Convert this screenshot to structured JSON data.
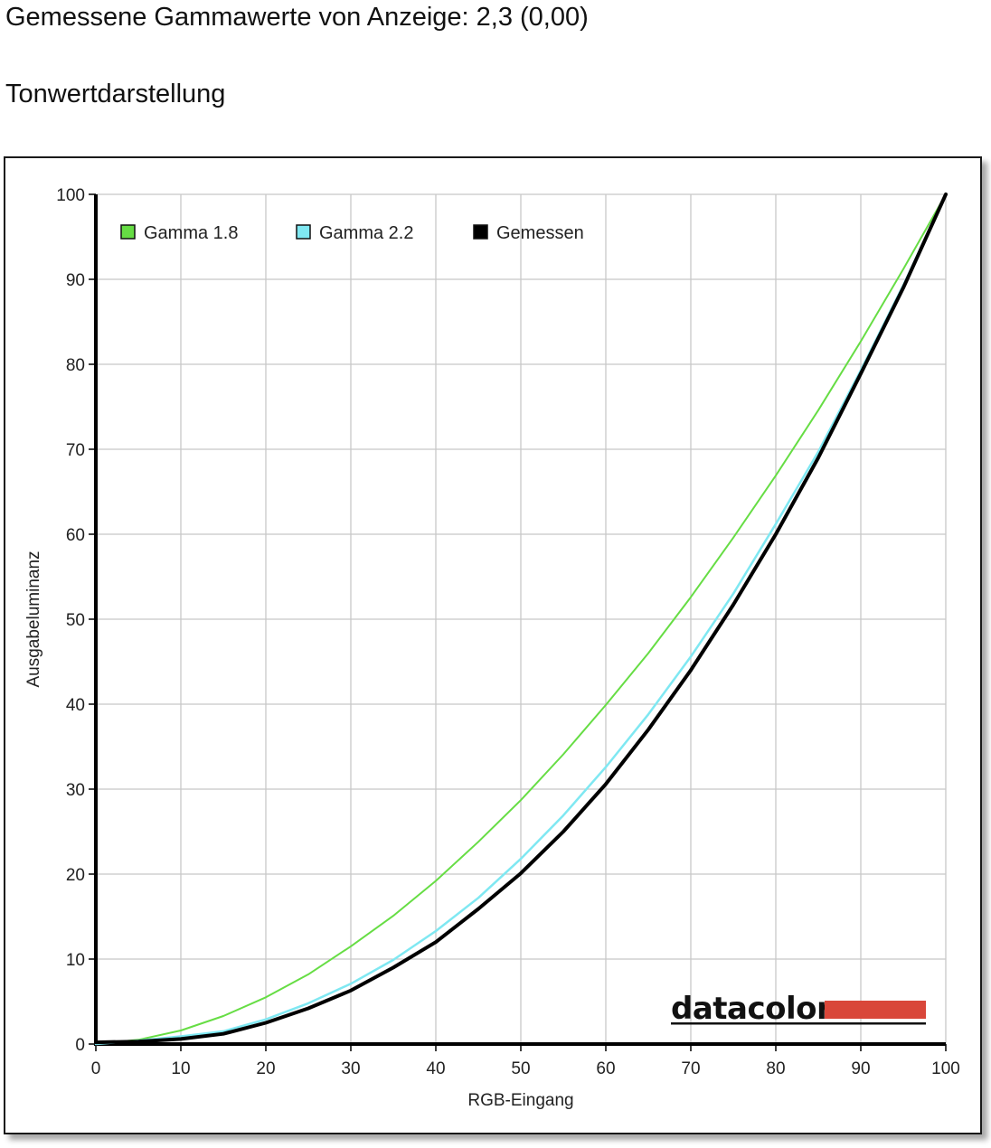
{
  "header": {
    "title": "Gemessene Gammawerte von Anzeige: 2,3 (0,00)",
    "subtitle": "Tonwertdarstellung"
  },
  "logo": {
    "text": "datacolor",
    "accent_color": "#d9473a"
  },
  "chart_data": {
    "type": "line",
    "xlabel": "RGB-Eingang",
    "ylabel": "Ausgabeluminanz",
    "xlim": [
      0,
      100
    ],
    "ylim": [
      0,
      100
    ],
    "x_ticks": [
      0,
      10,
      20,
      30,
      40,
      50,
      60,
      70,
      80,
      90,
      100
    ],
    "y_ticks": [
      0,
      10,
      20,
      30,
      40,
      50,
      60,
      70,
      80,
      90,
      100
    ],
    "grid": true,
    "legend_position": "top-left",
    "x": [
      0,
      5,
      10,
      15,
      20,
      25,
      30,
      35,
      40,
      45,
      50,
      55,
      60,
      65,
      70,
      75,
      80,
      85,
      90,
      95,
      100
    ],
    "series": [
      {
        "name": "Gamma 1.8",
        "color": "#66dd44",
        "values": [
          0,
          0.5,
          1.6,
          3.3,
          5.5,
          8.2,
          11.5,
          15.1,
          19.2,
          23.8,
          28.7,
          34.1,
          39.9,
          46.0,
          52.6,
          59.6,
          66.9,
          74.6,
          82.7,
          91.2,
          100
        ]
      },
      {
        "name": "Gamma 2.2",
        "color": "#7fe8f2",
        "values": [
          0,
          0.4,
          0.9,
          1.5,
          2.9,
          4.8,
          7.1,
          9.9,
          13.3,
          17.2,
          21.8,
          26.9,
          32.6,
          38.8,
          45.6,
          53.0,
          61.2,
          69.7,
          79.3,
          89.3,
          100
        ]
      },
      {
        "name": "Gemessen",
        "color": "#000000",
        "values": [
          0.2,
          0.3,
          0.6,
          1.2,
          2.5,
          4.2,
          6.3,
          9.0,
          12.0,
          15.9,
          20.1,
          25.0,
          30.6,
          37.0,
          44.0,
          51.7,
          60.0,
          69.0,
          78.9,
          89.0,
          100
        ]
      }
    ]
  }
}
